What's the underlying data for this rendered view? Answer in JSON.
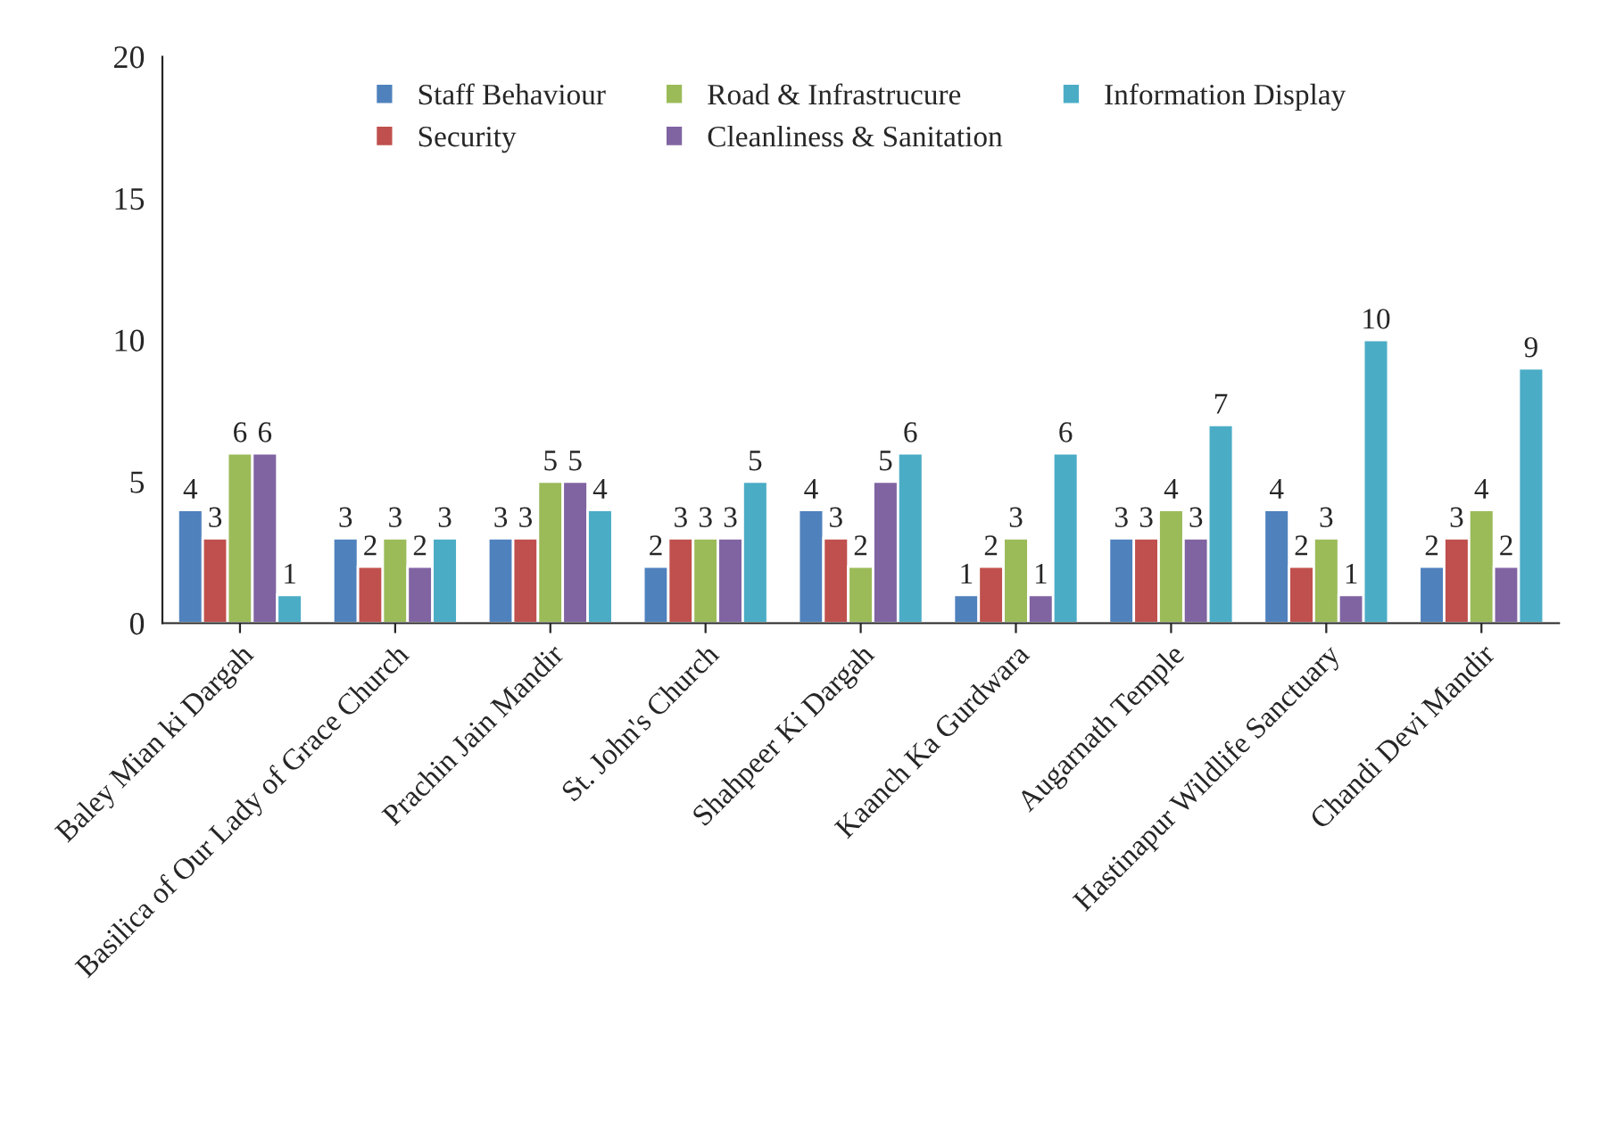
{
  "chart_data": {
    "type": "bar",
    "categories": [
      "Baley Mian ki Dargah",
      "Basilica of Our Lady of Grace Church",
      "Prachin Jain Mandir",
      "St. John's Church",
      "Shahpeer Ki Dargah",
      "Kaanch Ka Gurdwara",
      "Augarnath Temple",
      "Hastinapur Wildlife Sanctuary",
      "Chandi Devi Mandir"
    ],
    "series": [
      {
        "name": "Staff Behaviour",
        "color": "#4f81bd",
        "values": [
          4,
          3,
          3,
          2,
          4,
          1,
          3,
          4,
          2
        ]
      },
      {
        "name": "Security",
        "color": "#c0504d",
        "values": [
          3,
          2,
          3,
          3,
          3,
          2,
          3,
          2,
          3
        ]
      },
      {
        "name": "Road & Infrastrucure",
        "color": "#9bbb59",
        "values": [
          6,
          3,
          5,
          3,
          2,
          3,
          4,
          3,
          4
        ]
      },
      {
        "name": "Cleanliness & Sanitation",
        "color": "#8064a2",
        "values": [
          6,
          2,
          5,
          3,
          5,
          1,
          3,
          1,
          2
        ]
      },
      {
        "name": "Information Display",
        "color": "#4bacc6",
        "values": [
          1,
          3,
          4,
          5,
          6,
          6,
          7,
          10,
          9
        ]
      }
    ],
    "ylim": [
      0,
      20
    ],
    "yticks": [
      0,
      5,
      10,
      15,
      20
    ],
    "data_labels": true,
    "legend": "top",
    "grid": false
  }
}
